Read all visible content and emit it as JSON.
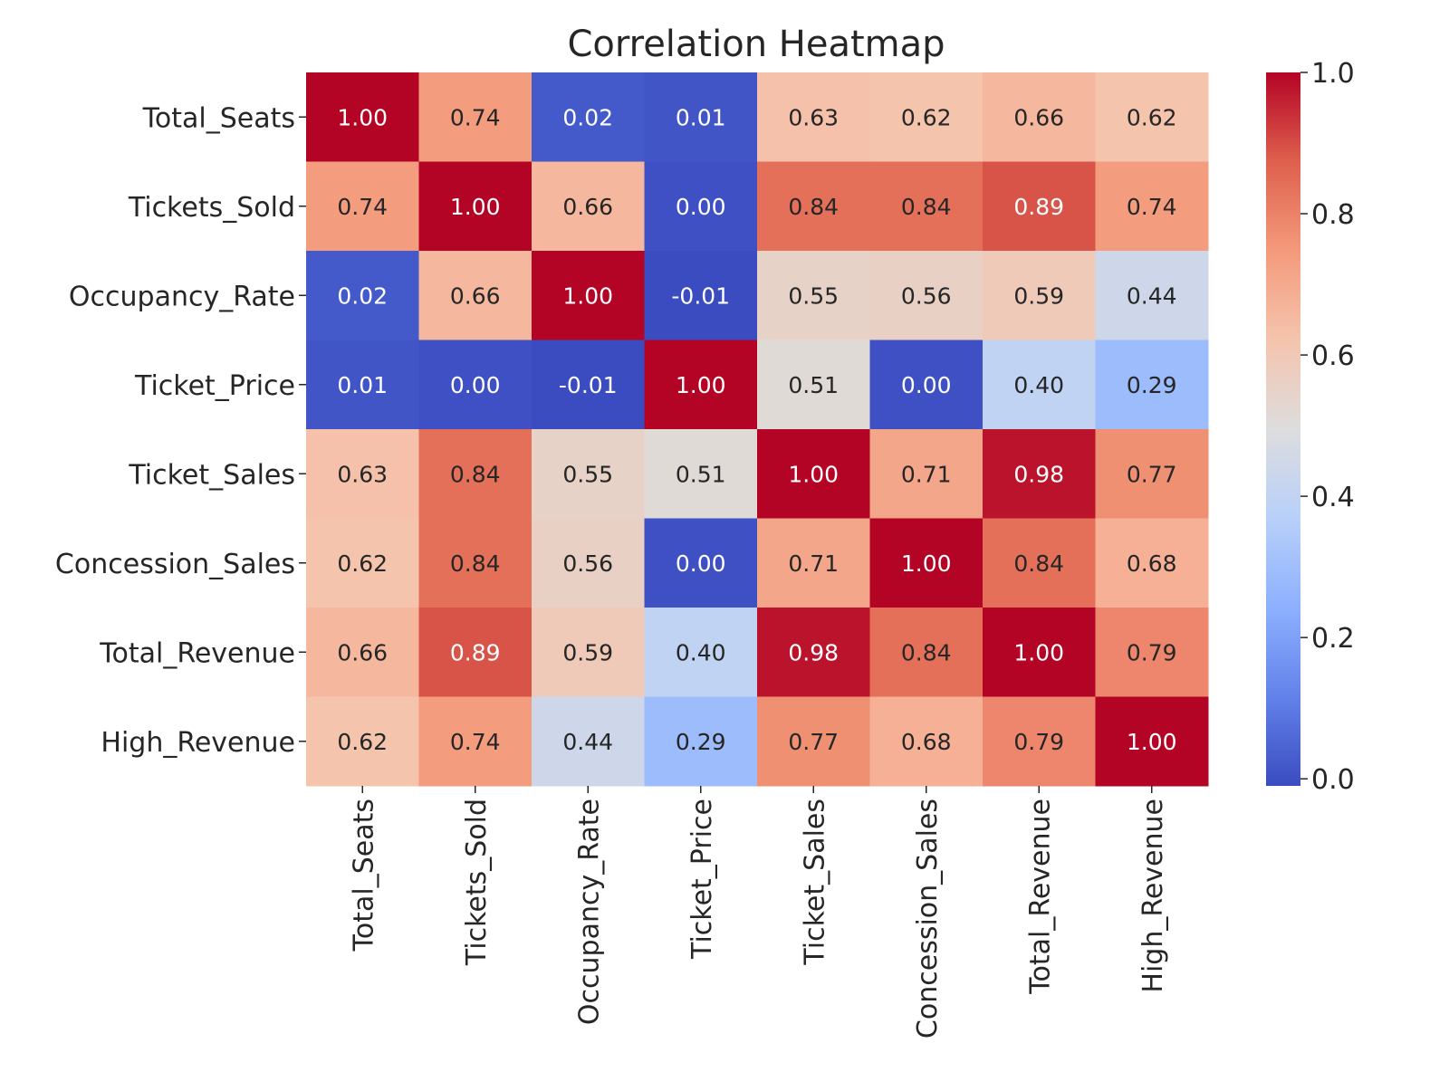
{
  "chart_data": {
    "type": "heatmap",
    "title": "Correlation Heatmap",
    "row_labels": [
      "Total_Seats",
      "Tickets_Sold",
      "Occupancy_Rate",
      "Ticket_Price",
      "Ticket_Sales",
      "Concession_Sales",
      "Total_Revenue",
      "High_Revenue"
    ],
    "col_labels": [
      "Total_Seats",
      "Tickets_Sold",
      "Occupancy_Rate",
      "Ticket_Price",
      "Ticket_Sales",
      "Concession_Sales",
      "Total_Revenue",
      "High_Revenue"
    ],
    "values": [
      [
        1.0,
        0.74,
        0.02,
        0.01,
        0.63,
        0.62,
        0.66,
        0.62
      ],
      [
        0.74,
        1.0,
        0.66,
        0.0,
        0.84,
        0.84,
        0.89,
        0.74
      ],
      [
        0.02,
        0.66,
        1.0,
        -0.01,
        0.55,
        0.56,
        0.59,
        0.44
      ],
      [
        0.01,
        0.0,
        -0.01,
        1.0,
        0.51,
        0.0,
        0.4,
        0.29
      ],
      [
        0.63,
        0.84,
        0.55,
        0.51,
        1.0,
        0.71,
        0.98,
        0.77
      ],
      [
        0.62,
        0.84,
        0.56,
        0.0,
        0.71,
        1.0,
        0.84,
        0.68
      ],
      [
        0.66,
        0.89,
        0.59,
        0.4,
        0.98,
        0.84,
        1.0,
        0.79
      ],
      [
        0.62,
        0.74,
        0.44,
        0.29,
        0.77,
        0.68,
        0.79,
        1.0
      ]
    ],
    "annotation_format": "2 decimals",
    "colormap": "coolwarm",
    "colorbar": {
      "range": [
        -0.01,
        1.0
      ],
      "ticks": [
        0.0,
        0.2,
        0.4,
        0.6,
        0.8,
        1.0
      ],
      "tick_labels": [
        "0.0",
        "0.2",
        "0.4",
        "0.6",
        "0.8",
        "1.0"
      ]
    }
  }
}
